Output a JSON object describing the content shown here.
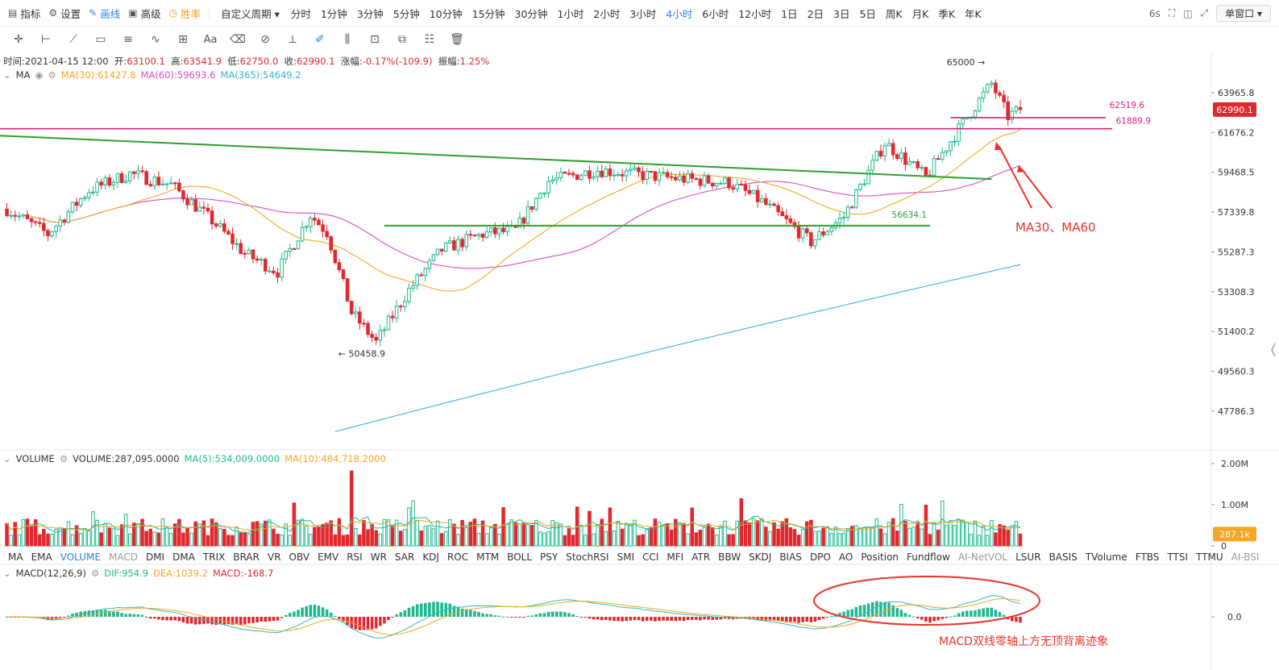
{
  "topbar": {
    "indicators": "指标",
    "settings": "设置",
    "draw": "画线",
    "advanced": "高级",
    "winrate": "胜率",
    "custom_period": "自定义周期",
    "periods": [
      "分时",
      "1分钟",
      "3分钟",
      "5分钟",
      "10分钟",
      "15分钟",
      "30分钟",
      "1小时",
      "2小时",
      "3小时",
      "4小时",
      "6小时",
      "12小时",
      "1日",
      "2日",
      "3日",
      "5日",
      "周K",
      "月K",
      "季K",
      "年K"
    ],
    "active_period": "4小时",
    "refresh": "6s",
    "window_mode": "单窗口"
  },
  "ohlc": {
    "time_label": "时间:",
    "time": "2021-04-15 12:00",
    "open_label": "开:",
    "open": "63100.1",
    "high_label": "高:",
    "high": "63541.9",
    "low_label": "低:",
    "low": "62750.0",
    "close_label": "收:",
    "close": "62990.1",
    "change_label": "涨幅:",
    "change": "-0.17%(-109.9)",
    "amp_label": "振幅:",
    "amp": "1.25%"
  },
  "ma_legend": {
    "name": "MA",
    "ma30": "MA(30):61427.8",
    "ma60": "MA(60):59693.6",
    "ma365": "MA(365):54649.2"
  },
  "volume_legend": {
    "name": "VOLUME",
    "volume": "VOLUME:287,095.0000",
    "ma5": "MA(5):534,009.0000",
    "ma10": "MA(10):484,718.2000"
  },
  "macd_legend": {
    "name": "MACD(12,26,9)",
    "dif": "DIF:954.9",
    "dea": "DEA:1039.2",
    "macd": "MACD:-168.7"
  },
  "indicator_tabs": [
    "MA",
    "EMA",
    "VOLUME",
    "MACD",
    "DMI",
    "DMA",
    "TRIX",
    "BRAR",
    "VR",
    "OBV",
    "EMV",
    "RSI",
    "WR",
    "SAR",
    "KDJ",
    "ROC",
    "MTM",
    "BOLL",
    "PSY",
    "StochRSI",
    "SMI",
    "CCI",
    "MFI",
    "ATR",
    "BBW",
    "SKDJ",
    "BIAS",
    "DPO",
    "AO",
    "Position",
    "Fundflow",
    "AI-NetVOL",
    "LSUR",
    "BASIS",
    "TVolume",
    "FTBS",
    "TTSI",
    "TTMU",
    "AI-BSI"
  ],
  "active_indicator_tab": "VOLUME",
  "colors": {
    "up": "#1db88f",
    "down": "#e0282e",
    "ma30": "#f5a623",
    "ma60": "#d84fc0",
    "ma365": "#3ab0d8",
    "trend_line": "#2ea02e",
    "level_line": "#d6237a",
    "annotation": "#e8332c"
  },
  "chart_data": [
    {
      "type": "candlestick",
      "title": "",
      "y_ticks": [
        63965.8,
        61676.2,
        59468.5,
        57339.8,
        55287.3,
        53308.3,
        51400.2,
        49560.3,
        47786.3
      ],
      "ylim": [
        46800,
        66000
      ],
      "last_price": 62990.1,
      "high_marker": "65000",
      "low_marker": "50458.9",
      "horizontal_levels": [
        {
          "label": "62519.6",
          "value": 62519.6
        },
        {
          "label": "61889.9",
          "value": 61889.9
        },
        {
          "label": "56634.1",
          "value": 56634.1
        }
      ],
      "annotations": [
        "MA30、MA60"
      ],
      "n_bars": 248
    },
    {
      "type": "bar",
      "title": "",
      "y_ticks": [
        "2.00M",
        "1.00M",
        "0"
      ],
      "last_volume_label": "287.1k"
    },
    {
      "type": "bar",
      "title": "",
      "y_ticks": [
        "0.0"
      ],
      "annotations": [
        "MACD双线零轴上方无顶背离迹象"
      ]
    }
  ]
}
